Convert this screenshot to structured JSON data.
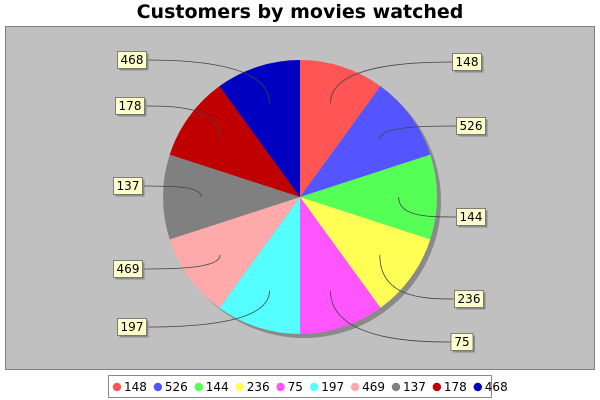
{
  "chart_data": {
    "type": "pie",
    "title": "Customers by movies watched",
    "slices": [
      {
        "label": "148",
        "value": 1,
        "color": "#ff5555"
      },
      {
        "label": "526",
        "value": 1,
        "color": "#5555ff"
      },
      {
        "label": "144",
        "value": 1,
        "color": "#55ff55"
      },
      {
        "label": "236",
        "value": 1,
        "color": "#ffff55"
      },
      {
        "label": "75",
        "value": 1,
        "color": "#ff55ff"
      },
      {
        "label": "197",
        "value": 1,
        "color": "#55ffff"
      },
      {
        "label": "469",
        "value": 1,
        "color": "#ffaaaa"
      },
      {
        "label": "137",
        "value": 1,
        "color": "#808080"
      },
      {
        "label": "178",
        "value": 1,
        "color": "#c00000"
      },
      {
        "label": "468",
        "value": 1,
        "color": "#0000c0"
      }
    ],
    "legend": {
      "position": "bottom"
    },
    "plot_background": "#c0c0c0",
    "label_background": "#ffffcc"
  }
}
